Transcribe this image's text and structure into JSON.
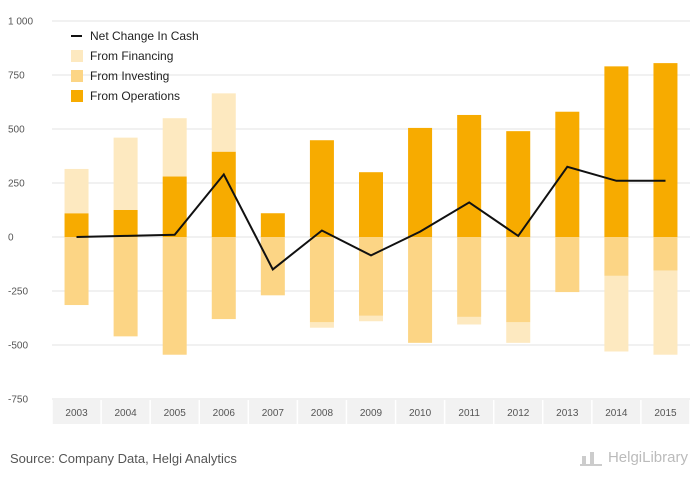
{
  "chart_data": {
    "type": "bar",
    "subtype": "stacked bar with line overlay",
    "categories": [
      "2003",
      "2004",
      "2005",
      "2006",
      "2007",
      "2008",
      "2009",
      "2010",
      "2011",
      "2012",
      "2013",
      "2014",
      "2015"
    ],
    "series": [
      {
        "name": "From Operations",
        "kind": "bar",
        "color": "#f7ab00",
        "values": [
          110,
          125,
          280,
          395,
          110,
          448,
          300,
          505,
          565,
          490,
          580,
          790,
          805
        ]
      },
      {
        "name": "From Investing",
        "kind": "bar",
        "color": "#fcd585",
        "values": [
          -315,
          -460,
          -545,
          -380,
          -270,
          -395,
          -365,
          -490,
          -370,
          -395,
          -255,
          -180,
          -155
        ]
      },
      {
        "name": "From Financing",
        "kind": "bar",
        "color": "#fde9c0",
        "values": [
          205,
          335,
          270,
          270,
          0,
          -25,
          -25,
          0,
          -35,
          -95,
          0,
          -350,
          -390
        ]
      },
      {
        "name": "Net Change In Cash",
        "kind": "line",
        "color": "#111111",
        "values": [
          0,
          5,
          10,
          290,
          -150,
          30,
          -85,
          25,
          160,
          5,
          325,
          260,
          260
        ]
      }
    ],
    "yticks": [
      "1 000",
      "750",
      "500",
      "250",
      "0",
      "-250",
      "-500",
      "-750"
    ],
    "ylim": [
      -750,
      1000
    ],
    "grid": true,
    "legend_position": "top-left",
    "legend": [
      "Net Change In Cash",
      "From Financing",
      "From Investing",
      "From Operations"
    ]
  },
  "footer": {
    "source": "Source: Company Data, Helgi Analytics",
    "brand": "HelgiLibrary"
  }
}
